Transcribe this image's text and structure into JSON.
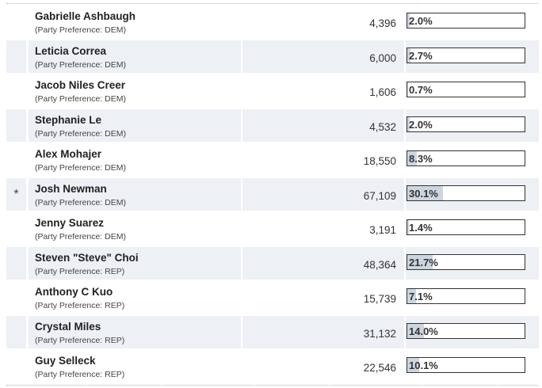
{
  "colors": {
    "row_shade": "#edf0f4",
    "bar_fill": "#cdd5df",
    "box_border": "#333333"
  },
  "candidates": [
    {
      "name": "Gabrielle Ashbaugh",
      "party": "(Party Preference: DEM)",
      "votes": "4,396",
      "percent": "2.0%",
      "percent_value": 2.0,
      "marker": ""
    },
    {
      "name": "Leticia Correa",
      "party": "(Party Preference: DEM)",
      "votes": "6,000",
      "percent": "2.7%",
      "percent_value": 2.7,
      "marker": ""
    },
    {
      "name": "Jacob Niles Creer",
      "party": "(Party Preference: DEM)",
      "votes": "1,606",
      "percent": "0.7%",
      "percent_value": 0.7,
      "marker": ""
    },
    {
      "name": "Stephanie Le",
      "party": "(Party Preference: DEM)",
      "votes": "4,532",
      "percent": "2.0%",
      "percent_value": 2.0,
      "marker": ""
    },
    {
      "name": "Alex Mohajer",
      "party": "(Party Preference: DEM)",
      "votes": "18,550",
      "percent": "8.3%",
      "percent_value": 8.3,
      "marker": ""
    },
    {
      "name": "Josh Newman",
      "party": "(Party Preference: DEM)",
      "votes": "67,109",
      "percent": "30.1%",
      "percent_value": 30.1,
      "marker": "*"
    },
    {
      "name": "Jenny Suarez",
      "party": "(Party Preference: DEM)",
      "votes": "3,191",
      "percent": "1.4%",
      "percent_value": 1.4,
      "marker": ""
    },
    {
      "name": "Steven \"Steve\" Choi",
      "party": "(Party Preference: REP)",
      "votes": "48,364",
      "percent": "21.7%",
      "percent_value": 21.7,
      "marker": ""
    },
    {
      "name": "Anthony C Kuo",
      "party": "(Party Preference: REP)",
      "votes": "15,739",
      "percent": "7.1%",
      "percent_value": 7.1,
      "marker": ""
    },
    {
      "name": "Crystal Miles",
      "party": "(Party Preference: REP)",
      "votes": "31,132",
      "percent": "14.0%",
      "percent_value": 14.0,
      "marker": ""
    },
    {
      "name": "Guy Selleck",
      "party": "(Party Preference: REP)",
      "votes": "22,546",
      "percent": "10.1%",
      "percent_value": 10.1,
      "marker": ""
    }
  ]
}
